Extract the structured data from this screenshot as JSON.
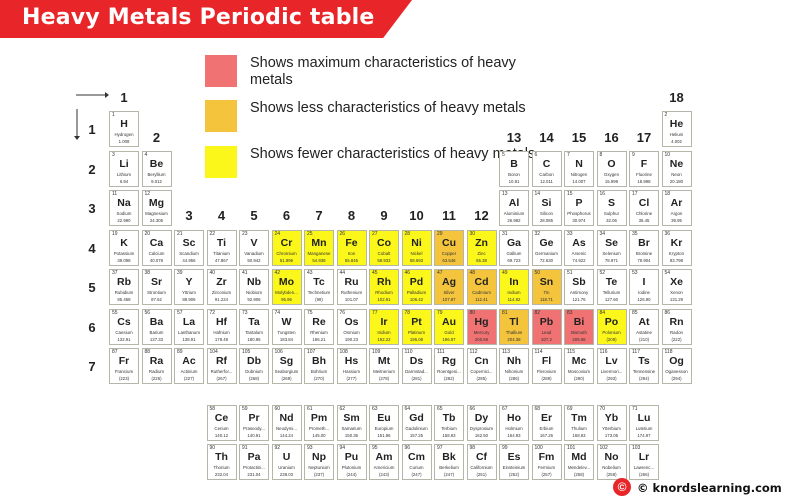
{
  "title": "Heavy Metals Periodic table",
  "legend": [
    {
      "color": "#f17273",
      "text": "Shows maximum characteristics of heavy metals"
    },
    {
      "color": "#f3c43c",
      "text": "Shows less characteristics of heavy metals"
    },
    {
      "color": "#fbf71a",
      "text": "Shows fewer characteristics of heavy metals"
    }
  ],
  "groups": [
    "1",
    "2",
    "3",
    "4",
    "5",
    "6",
    "7",
    "8",
    "9",
    "10",
    "11",
    "12",
    "13",
    "14",
    "15",
    "16",
    "17",
    "18"
  ],
  "periods": [
    "1",
    "2",
    "3",
    "4",
    "5",
    "6",
    "7"
  ],
  "footer": "© knordslearning.com",
  "elements": [
    {
      "n": "1",
      "s": "H",
      "name": "Hydrogen",
      "m": "1.008",
      "g": 1,
      "p": 1
    },
    {
      "n": "2",
      "s": "He",
      "name": "Helium",
      "m": "4.002",
      "g": 18,
      "p": 1
    },
    {
      "n": "3",
      "s": "Li",
      "name": "Lithium",
      "m": "6.94",
      "g": 1,
      "p": 2
    },
    {
      "n": "4",
      "s": "Be",
      "name": "Beryllium",
      "m": "9.012",
      "g": 2,
      "p": 2
    },
    {
      "n": "5",
      "s": "B",
      "name": "Boron",
      "m": "10.81",
      "g": 13,
      "p": 2
    },
    {
      "n": "6",
      "s": "C",
      "name": "Carbon",
      "m": "12.011",
      "g": 14,
      "p": 2
    },
    {
      "n": "7",
      "s": "N",
      "name": "Nitrogen",
      "m": "14.007",
      "g": 15,
      "p": 2
    },
    {
      "n": "8",
      "s": "O",
      "name": "Oxygen",
      "m": "15.999",
      "g": 16,
      "p": 2
    },
    {
      "n": "9",
      "s": "F",
      "name": "Fluorine",
      "m": "18.998",
      "g": 17,
      "p": 2
    },
    {
      "n": "10",
      "s": "Ne",
      "name": "Neon",
      "m": "20.180",
      "g": 18,
      "p": 2
    },
    {
      "n": "11",
      "s": "Na",
      "name": "Sodium",
      "m": "22.990",
      "g": 1,
      "p": 3
    },
    {
      "n": "12",
      "s": "Mg",
      "name": "Magnesium",
      "m": "24.305",
      "g": 2,
      "p": 3
    },
    {
      "n": "13",
      "s": "Al",
      "name": "Aluminium",
      "m": "26.982",
      "g": 13,
      "p": 3
    },
    {
      "n": "14",
      "s": "Si",
      "name": "Silicon",
      "m": "28.085",
      "g": 14,
      "p": 3
    },
    {
      "n": "15",
      "s": "P",
      "name": "Phosphorus",
      "m": "30.974",
      "g": 15,
      "p": 3
    },
    {
      "n": "16",
      "s": "S",
      "name": "Sulphur",
      "m": "32.06",
      "g": 16,
      "p": 3
    },
    {
      "n": "17",
      "s": "Cl",
      "name": "Chlorine",
      "m": "35.45",
      "g": 17,
      "p": 3
    },
    {
      "n": "18",
      "s": "Ar",
      "name": "Argon",
      "m": "39.95",
      "g": 18,
      "p": 3
    },
    {
      "n": "19",
      "s": "K",
      "name": "Potassium",
      "m": "39.098",
      "g": 1,
      "p": 4
    },
    {
      "n": "20",
      "s": "Ca",
      "name": "Calcium",
      "m": "40.078",
      "g": 2,
      "p": 4
    },
    {
      "n": "21",
      "s": "Sc",
      "name": "Scandium",
      "m": "44.956",
      "g": 3,
      "p": 4
    },
    {
      "n": "22",
      "s": "Ti",
      "name": "Titanium",
      "m": "47.867",
      "g": 4,
      "p": 4
    },
    {
      "n": "23",
      "s": "V",
      "name": "Vanadium",
      "m": "50.942",
      "g": 5,
      "p": 4
    },
    {
      "n": "24",
      "s": "Cr",
      "name": "Chromium",
      "m": "51.996",
      "g": 6,
      "p": 4,
      "c": "few"
    },
    {
      "n": "25",
      "s": "Mn",
      "name": "Manganese",
      "m": "54.938",
      "g": 7,
      "p": 4,
      "c": "few"
    },
    {
      "n": "26",
      "s": "Fe",
      "name": "Iron",
      "m": "55.845",
      "g": 8,
      "p": 4,
      "c": "few"
    },
    {
      "n": "27",
      "s": "Co",
      "name": "Cobalt",
      "m": "58.933",
      "g": 9,
      "p": 4,
      "c": "few"
    },
    {
      "n": "28",
      "s": "Ni",
      "name": "Nickel",
      "m": "58.693",
      "g": 10,
      "p": 4,
      "c": "few"
    },
    {
      "n": "29",
      "s": "Cu",
      "name": "Copper",
      "m": "63.546",
      "g": 11,
      "p": 4,
      "c": "less"
    },
    {
      "n": "30",
      "s": "Zn",
      "name": "Zinc",
      "m": "65.38",
      "g": 12,
      "p": 4,
      "c": "few"
    },
    {
      "n": "31",
      "s": "Ga",
      "name": "Gallium",
      "m": "69.723",
      "g": 13,
      "p": 4
    },
    {
      "n": "32",
      "s": "Ge",
      "name": "Germanium",
      "m": "72.630",
      "g": 14,
      "p": 4
    },
    {
      "n": "33",
      "s": "As",
      "name": "Arsenic",
      "m": "74.922",
      "g": 15,
      "p": 4
    },
    {
      "n": "34",
      "s": "Se",
      "name": "Selenium",
      "m": "78.971",
      "g": 16,
      "p": 4
    },
    {
      "n": "35",
      "s": "Br",
      "name": "Bromine",
      "m": "79.904",
      "g": 17,
      "p": 4
    },
    {
      "n": "36",
      "s": "Kr",
      "name": "Krypton",
      "m": "83.798",
      "g": 18,
      "p": 4
    },
    {
      "n": "37",
      "s": "Rb",
      "name": "Rubidium",
      "m": "85.468",
      "g": 1,
      "p": 5
    },
    {
      "n": "38",
      "s": "Sr",
      "name": "Strontium",
      "m": "87.62",
      "g": 2,
      "p": 5
    },
    {
      "n": "39",
      "s": "Y",
      "name": "Yttrium",
      "m": "88.906",
      "g": 3,
      "p": 5
    },
    {
      "n": "40",
      "s": "Zr",
      "name": "Zirconium",
      "m": "91.224",
      "g": 4,
      "p": 5
    },
    {
      "n": "41",
      "s": "Nb",
      "name": "Niobium",
      "m": "92.906",
      "g": 5,
      "p": 5
    },
    {
      "n": "42",
      "s": "Mo",
      "name": "Molybden...",
      "m": "95.95",
      "g": 6,
      "p": 5,
      "c": "few"
    },
    {
      "n": "43",
      "s": "Tc",
      "name": "Technetium",
      "m": "(98)",
      "g": 7,
      "p": 5
    },
    {
      "n": "44",
      "s": "Ru",
      "name": "Ruthenium",
      "m": "101.07",
      "g": 8,
      "p": 5
    },
    {
      "n": "45",
      "s": "Rh",
      "name": "Rhodium",
      "m": "102.91",
      "g": 9,
      "p": 5,
      "c": "few"
    },
    {
      "n": "46",
      "s": "Pd",
      "name": "Palladium",
      "m": "106.42",
      "g": 10,
      "p": 5,
      "c": "few"
    },
    {
      "n": "47",
      "s": "Ag",
      "name": "Silver",
      "m": "107.87",
      "g": 11,
      "p": 5,
      "c": "less"
    },
    {
      "n": "48",
      "s": "Cd",
      "name": "Cadmium",
      "m": "112.41",
      "g": 12,
      "p": 5,
      "c": "less"
    },
    {
      "n": "49",
      "s": "In",
      "name": "Indium",
      "m": "114.82",
      "g": 13,
      "p": 5,
      "c": "few"
    },
    {
      "n": "50",
      "s": "Sn",
      "name": "Tin",
      "m": "118.71",
      "g": 14,
      "p": 5,
      "c": "less"
    },
    {
      "n": "51",
      "s": "Sb",
      "name": "Antimony",
      "m": "121.76",
      "g": 15,
      "p": 5
    },
    {
      "n": "52",
      "s": "Te",
      "name": "Tellurium",
      "m": "127.60",
      "g": 16,
      "p": 5
    },
    {
      "n": "53",
      "s": "I",
      "name": "Iodine",
      "m": "126.90",
      "g": 17,
      "p": 5
    },
    {
      "n": "54",
      "s": "Xe",
      "name": "Xenon",
      "m": "131.29",
      "g": 18,
      "p": 5
    },
    {
      "n": "55",
      "s": "Cs",
      "name": "Caesium",
      "m": "132.91",
      "g": 1,
      "p": 6
    },
    {
      "n": "56",
      "s": "Ba",
      "name": "Barium",
      "m": "137.33",
      "g": 2,
      "p": 6
    },
    {
      "n": "57",
      "s": "La",
      "name": "Lanthanum",
      "m": "138.91",
      "g": 3,
      "p": 6
    },
    {
      "n": "72",
      "s": "Hf",
      "name": "Hafnium",
      "m": "178.49",
      "g": 4,
      "p": 6
    },
    {
      "n": "73",
      "s": "Ta",
      "name": "Tantalum",
      "m": "180.95",
      "g": 5,
      "p": 6
    },
    {
      "n": "74",
      "s": "W",
      "name": "Tungsten",
      "m": "183.84",
      "g": 6,
      "p": 6
    },
    {
      "n": "75",
      "s": "Re",
      "name": "Rhenium",
      "m": "186.21",
      "g": 7,
      "p": 6
    },
    {
      "n": "76",
      "s": "Os",
      "name": "Osmium",
      "m": "190.23",
      "g": 8,
      "p": 6
    },
    {
      "n": "77",
      "s": "Ir",
      "name": "Iridium",
      "m": "192.22",
      "g": 9,
      "p": 6,
      "c": "few"
    },
    {
      "n": "78",
      "s": "Pt",
      "name": "Platinum",
      "m": "195.08",
      "g": 10,
      "p": 6,
      "c": "few"
    },
    {
      "n": "79",
      "s": "Au",
      "name": "Gold",
      "m": "196.97",
      "g": 11,
      "p": 6,
      "c": "few"
    },
    {
      "n": "80",
      "s": "Hg",
      "name": "Mercury",
      "m": "200.59",
      "g": 12,
      "p": 6,
      "c": "max"
    },
    {
      "n": "81",
      "s": "Tl",
      "name": "Thallium",
      "m": "204.38",
      "g": 13,
      "p": 6,
      "c": "less"
    },
    {
      "n": "82",
      "s": "Pb",
      "name": "Lead",
      "m": "207.2",
      "g": 14,
      "p": 6,
      "c": "max"
    },
    {
      "n": "83",
      "s": "Bi",
      "name": "Bismuth",
      "m": "208.98",
      "g": 15,
      "p": 6,
      "c": "max"
    },
    {
      "n": "84",
      "s": "Po",
      "name": "Polonium",
      "m": "(209)",
      "g": 16,
      "p": 6,
      "c": "few"
    },
    {
      "n": "85",
      "s": "At",
      "name": "Astatine",
      "m": "(210)",
      "g": 17,
      "p": 6
    },
    {
      "n": "86",
      "s": "Rn",
      "name": "Radon",
      "m": "(222)",
      "g": 18,
      "p": 6
    },
    {
      "n": "87",
      "s": "Fr",
      "name": "Francium",
      "m": "(223)",
      "g": 1,
      "p": 7
    },
    {
      "n": "88",
      "s": "Ra",
      "name": "Radium",
      "m": "(226)",
      "g": 2,
      "p": 7
    },
    {
      "n": "89",
      "s": "Ac",
      "name": "Actinium",
      "m": "(227)",
      "g": 3,
      "p": 7
    },
    {
      "n": "104",
      "s": "Rf",
      "name": "Rutherfor...",
      "m": "(267)",
      "g": 4,
      "p": 7
    },
    {
      "n": "105",
      "s": "Db",
      "name": "Dubnium",
      "m": "(268)",
      "g": 5,
      "p": 7
    },
    {
      "n": "106",
      "s": "Sg",
      "name": "Seaborgium",
      "m": "(269)",
      "g": 6,
      "p": 7
    },
    {
      "n": "107",
      "s": "Bh",
      "name": "Bohrium",
      "m": "(270)",
      "g": 7,
      "p": 7
    },
    {
      "n": "108",
      "s": "Hs",
      "name": "Hassium",
      "m": "(277)",
      "g": 8,
      "p": 7
    },
    {
      "n": "109",
      "s": "Mt",
      "name": "Meitnerium",
      "m": "(278)",
      "g": 9,
      "p": 7
    },
    {
      "n": "110",
      "s": "Ds",
      "name": "Darmstad...",
      "m": "(281)",
      "g": 10,
      "p": 7
    },
    {
      "n": "111",
      "s": "Rg",
      "name": "Roentgeni...",
      "m": "(282)",
      "g": 11,
      "p": 7
    },
    {
      "n": "112",
      "s": "Cn",
      "name": "Copernici...",
      "m": "(285)",
      "g": 12,
      "p": 7
    },
    {
      "n": "113",
      "s": "Nh",
      "name": "Nihonium",
      "m": "(286)",
      "g": 13,
      "p": 7
    },
    {
      "n": "114",
      "s": "Fl",
      "name": "Flerovium",
      "m": "(289)",
      "g": 14,
      "p": 7
    },
    {
      "n": "115",
      "s": "Mc",
      "name": "Moscovium",
      "m": "(290)",
      "g": 15,
      "p": 7
    },
    {
      "n": "116",
      "s": "Lv",
      "name": "Livermori...",
      "m": "(293)",
      "g": 16,
      "p": 7
    },
    {
      "n": "117",
      "s": "Ts",
      "name": "Tennessine",
      "m": "(294)",
      "g": 17,
      "p": 7
    },
    {
      "n": "118",
      "s": "Og",
      "name": "Oganesson",
      "m": "(294)",
      "g": 18,
      "p": 7
    },
    {
      "n": "58",
      "s": "Ce",
      "name": "Cerium",
      "m": "140.12",
      "g": 4,
      "p": 8
    },
    {
      "n": "59",
      "s": "Pr",
      "name": "Praseody...",
      "m": "140.91",
      "g": 5,
      "p": 8
    },
    {
      "n": "60",
      "s": "Nd",
      "name": "Neodymi...",
      "m": "144.24",
      "g": 6,
      "p": 8
    },
    {
      "n": "61",
      "s": "Pm",
      "name": "Prometh...",
      "m": "145.00",
      "g": 7,
      "p": 8
    },
    {
      "n": "62",
      "s": "Sm",
      "name": "Samarium",
      "m": "150.36",
      "g": 8,
      "p": 8
    },
    {
      "n": "63",
      "s": "Eu",
      "name": "Europium",
      "m": "151.96",
      "g": 9,
      "p": 8
    },
    {
      "n": "64",
      "s": "Gd",
      "name": "Gadolinium",
      "m": "157.25",
      "g": 10,
      "p": 8
    },
    {
      "n": "65",
      "s": "Tb",
      "name": "Terbium",
      "m": "158.93",
      "g": 11,
      "p": 8
    },
    {
      "n": "66",
      "s": "Dy",
      "name": "Dysprosium",
      "m": "162.50",
      "g": 12,
      "p": 8
    },
    {
      "n": "67",
      "s": "Ho",
      "name": "Holmium",
      "m": "164.93",
      "g": 13,
      "p": 8
    },
    {
      "n": "68",
      "s": "Er",
      "name": "Erbium",
      "m": "167.26",
      "g": 14,
      "p": 8
    },
    {
      "n": "69",
      "s": "Tm",
      "name": "Thulium",
      "m": "168.93",
      "g": 15,
      "p": 8
    },
    {
      "n": "70",
      "s": "Yb",
      "name": "Ytterbium",
      "m": "173.05",
      "g": 16,
      "p": 8
    },
    {
      "n": "71",
      "s": "Lu",
      "name": "Lutetium",
      "m": "174.97",
      "g": 17,
      "p": 8
    },
    {
      "n": "90",
      "s": "Th",
      "name": "Thorium",
      "m": "232.04",
      "g": 4,
      "p": 9
    },
    {
      "n": "91",
      "s": "Pa",
      "name": "Protactini...",
      "m": "231.04",
      "g": 5,
      "p": 9
    },
    {
      "n": "92",
      "s": "U",
      "name": "Uranium",
      "m": "238.03",
      "g": 6,
      "p": 9
    },
    {
      "n": "93",
      "s": "Np",
      "name": "Neptunium",
      "m": "(237)",
      "g": 7,
      "p": 9
    },
    {
      "n": "94",
      "s": "Pu",
      "name": "Plutonium",
      "m": "(244)",
      "g": 8,
      "p": 9
    },
    {
      "n": "95",
      "s": "Am",
      "name": "Americium",
      "m": "(243)",
      "g": 9,
      "p": 9
    },
    {
      "n": "96",
      "s": "Cm",
      "name": "Curium",
      "m": "(247)",
      "g": 10,
      "p": 9
    },
    {
      "n": "97",
      "s": "Bk",
      "name": "Berkelium",
      "m": "(247)",
      "g": 11,
      "p": 9
    },
    {
      "n": "98",
      "s": "Cf",
      "name": "Californium",
      "m": "(251)",
      "g": 12,
      "p": 9
    },
    {
      "n": "99",
      "s": "Es",
      "name": "Einsteinium",
      "m": "(252)",
      "g": 13,
      "p": 9
    },
    {
      "n": "100",
      "s": "Fm",
      "name": "Fermium",
      "m": "(257)",
      "g": 14,
      "p": 9
    },
    {
      "n": "101",
      "s": "Md",
      "name": "Mendelev...",
      "m": "(258)",
      "g": 15,
      "p": 9
    },
    {
      "n": "102",
      "s": "No",
      "name": "Nobelium",
      "m": "(259)",
      "g": 16,
      "p": 9
    },
    {
      "n": "103",
      "s": "Lr",
      "name": "Lawrenc...",
      "m": "(266)",
      "g": 17,
      "p": 9
    }
  ]
}
